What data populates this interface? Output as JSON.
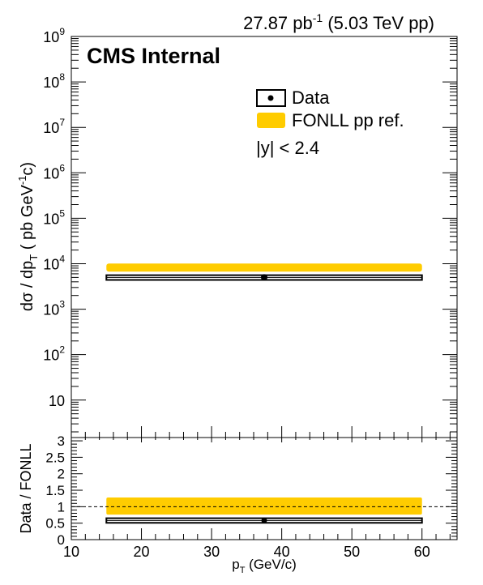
{
  "header": {
    "lumi_value": "27.87 pb",
    "lumi_exp": "-1",
    "lumi_suffix": " (5.03 TeV pp)"
  },
  "label": {
    "cms": "CMS Internal",
    "rapidity_cut": "|y| < 2.4"
  },
  "legend": {
    "data_label": "Data",
    "fonll_label": "FONLL pp ref."
  },
  "axes": {
    "ylabel_top": {
      "prefix": "dσ / dp",
      "sub": "T",
      "mid": " ( pb GeV",
      "sup": "-1",
      "suffix": "c)"
    },
    "ylabel_bottom": "Data / FONLL",
    "xlabel": {
      "main": "p",
      "sub": "T",
      "suffix": " (GeV/c)"
    }
  },
  "colors": {
    "fonll_band": "#ffcc00",
    "data_box": "#000000",
    "ratio_line": "#000000"
  },
  "chart_data": [
    {
      "type": "scatter",
      "panel": "cross-section",
      "scale": "log",
      "xlim": [
        10,
        65
      ],
      "ylim": [
        1.5,
        1000000000
      ],
      "ytick_labels": [
        {
          "value": 10,
          "base": "10",
          "exp": ""
        },
        {
          "value": 100,
          "base": "10",
          "exp": "2"
        },
        {
          "value": 1000,
          "base": "10",
          "exp": "3"
        },
        {
          "value": 10000,
          "base": "10",
          "exp": "4"
        },
        {
          "value": 100000,
          "base": "10",
          "exp": "5"
        },
        {
          "value": 1000000,
          "base": "10",
          "exp": "6"
        },
        {
          "value": 10000000,
          "base": "10",
          "exp": "7"
        },
        {
          "value": 100000000,
          "base": "10",
          "exp": "8"
        },
        {
          "value": 1000000000,
          "base": "10",
          "exp": "9"
        }
      ],
      "series": [
        {
          "name": "Data",
          "x": [
            37.5
          ],
          "x_low": [
            15
          ],
          "x_high": [
            60
          ],
          "y": [
            5000
          ],
          "y_low": [
            4400
          ],
          "y_high": [
            5600
          ]
        },
        {
          "name": "FONLL pp ref.",
          "x": [
            37.5
          ],
          "x_low": [
            15
          ],
          "x_high": [
            60
          ],
          "y_low": [
            6700
          ],
          "y_high": [
            10100
          ]
        }
      ]
    },
    {
      "type": "scatter",
      "panel": "ratio",
      "xlim": [
        10,
        65
      ],
      "ylim": [
        0,
        3.1
      ],
      "yticks": [
        "0",
        "0.5",
        "1",
        "1.5",
        "2",
        "2.5",
        "3"
      ],
      "xticks": [
        "10",
        "20",
        "30",
        "40",
        "50",
        "60"
      ],
      "reference_line": 1,
      "series": [
        {
          "name": "Data",
          "x": [
            37.5
          ],
          "x_low": [
            15
          ],
          "x_high": [
            60
          ],
          "y": [
            0.58
          ],
          "y_low": [
            0.51
          ],
          "y_high": [
            0.65
          ]
        },
        {
          "name": "FONLL pp ref.",
          "x": [
            37.5
          ],
          "x_low": [
            15
          ],
          "x_high": [
            60
          ],
          "y_low": [
            0.76
          ],
          "y_high": [
            1.28
          ]
        }
      ]
    }
  ]
}
